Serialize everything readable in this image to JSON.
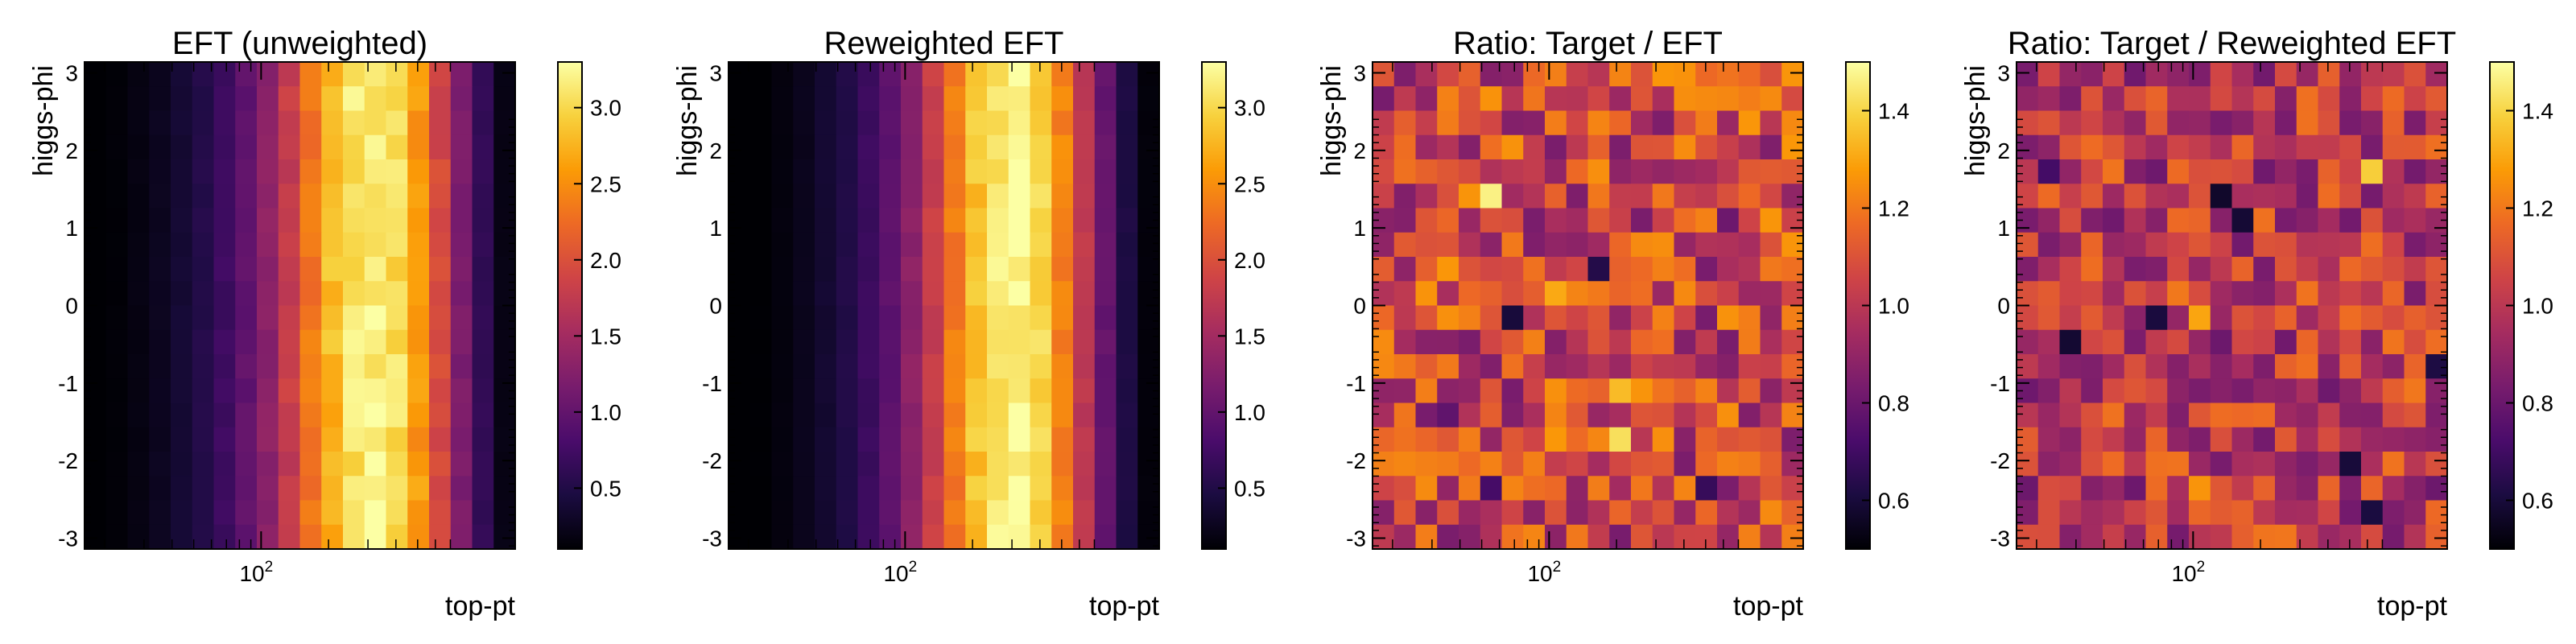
{
  "colors": {
    "colormap": "inferno",
    "stops": [
      "#000004",
      "#1b0c41",
      "#4a0c6b",
      "#781c6d",
      "#a52c60",
      "#cf4446",
      "#ed6925",
      "#fb9b06",
      "#f7d13d",
      "#fcffa4"
    ],
    "frame": "#000000",
    "background": "#ffffff"
  },
  "chart_data": [
    {
      "type": "heatmap",
      "title": "EFT (unweighted)",
      "xlabel": "top-pt",
      "ylabel": "higgs-phi",
      "xscale": "log",
      "xtick_labels": [
        {
          "value": 100,
          "base": "10",
          "exp": "2"
        }
      ],
      "yticks": [
        -3,
        -2,
        -1,
        0,
        1,
        2,
        3
      ],
      "ylim": [
        -3.14,
        3.14
      ],
      "colorbar": {
        "range": [
          0.1,
          3.3
        ],
        "ticks": [
          0.5,
          1.0,
          1.5,
          2.0,
          2.5,
          3.0
        ],
        "tick_labels": [
          "0.5",
          "1.0",
          "1.5",
          "2.0",
          "2.5",
          "3.0"
        ]
      },
      "grid": false,
      "nx": 20,
      "ny": 20,
      "col_profile": [
        0.08,
        0.12,
        0.18,
        0.26,
        0.38,
        0.52,
        0.72,
        0.98,
        1.32,
        1.78,
        2.3,
        2.78,
        3.08,
        3.2,
        3.02,
        2.58,
        1.92,
        1.2,
        0.62,
        0.2
      ],
      "variation": 0.06,
      "seed": 11
    },
    {
      "type": "heatmap",
      "title": "Reweighted EFT",
      "xlabel": "top-pt",
      "ylabel": "higgs-phi",
      "xscale": "log",
      "xtick_labels": [
        {
          "value": 100,
          "base": "10",
          "exp": "2"
        }
      ],
      "yticks": [
        -3,
        -2,
        -1,
        0,
        1,
        2,
        3
      ],
      "ylim": [
        -3.14,
        3.14
      ],
      "colorbar": {
        "range": [
          0.1,
          3.3
        ],
        "ticks": [
          0.5,
          1.0,
          1.5,
          2.0,
          2.5,
          3.0
        ],
        "tick_labels": [
          "0.5",
          "1.0",
          "1.5",
          "2.0",
          "2.5",
          "3.0"
        ]
      },
      "grid": false,
      "nx": 20,
      "ny": 20,
      "col_profile": [
        0.06,
        0.1,
        0.16,
        0.24,
        0.36,
        0.5,
        0.7,
        0.96,
        1.32,
        1.8,
        2.36,
        2.86,
        3.14,
        3.22,
        2.96,
        2.42,
        1.72,
        1.02,
        0.48,
        0.14
      ],
      "variation": 0.05,
      "seed": 23
    },
    {
      "type": "heatmap",
      "title": "Ratio: Target / EFT",
      "xlabel": "top-pt",
      "ylabel": "higgs-phi",
      "xscale": "log",
      "xtick_labels": [
        {
          "value": 100,
          "base": "10",
          "exp": "2"
        }
      ],
      "yticks": [
        -3,
        -2,
        -1,
        0,
        1,
        2,
        3
      ],
      "ylim": [
        -3.14,
        3.14
      ],
      "colorbar": {
        "range": [
          0.5,
          1.5
        ],
        "ticks": [
          0.6,
          0.8,
          1.0,
          1.2,
          1.4
        ],
        "tick_labels": [
          "0.6",
          "0.8",
          "1.0",
          "1.2",
          "1.4"
        ]
      },
      "grid": false,
      "nx": 20,
      "ny": 20,
      "base_value": 1.05,
      "variation": 0.22,
      "seed": 37
    },
    {
      "type": "heatmap",
      "title": "Ratio: Target / Reweighted EFT",
      "xlabel": "top-pt",
      "ylabel": "higgs-phi",
      "xscale": "log",
      "xtick_labels": [
        {
          "value": 100,
          "base": "10",
          "exp": "2"
        }
      ],
      "yticks": [
        -3,
        -2,
        -1,
        0,
        1,
        2,
        3
      ],
      "ylim": [
        -3.14,
        3.14
      ],
      "colorbar": {
        "range": [
          0.5,
          1.5
        ],
        "ticks": [
          0.6,
          0.8,
          1.0,
          1.2,
          1.4
        ],
        "tick_labels": [
          "0.6",
          "0.8",
          "1.0",
          "1.2",
          "1.4"
        ]
      },
      "grid": false,
      "nx": 20,
      "ny": 20,
      "base_value": 1.0,
      "variation": 0.2,
      "seed": 53
    }
  ]
}
